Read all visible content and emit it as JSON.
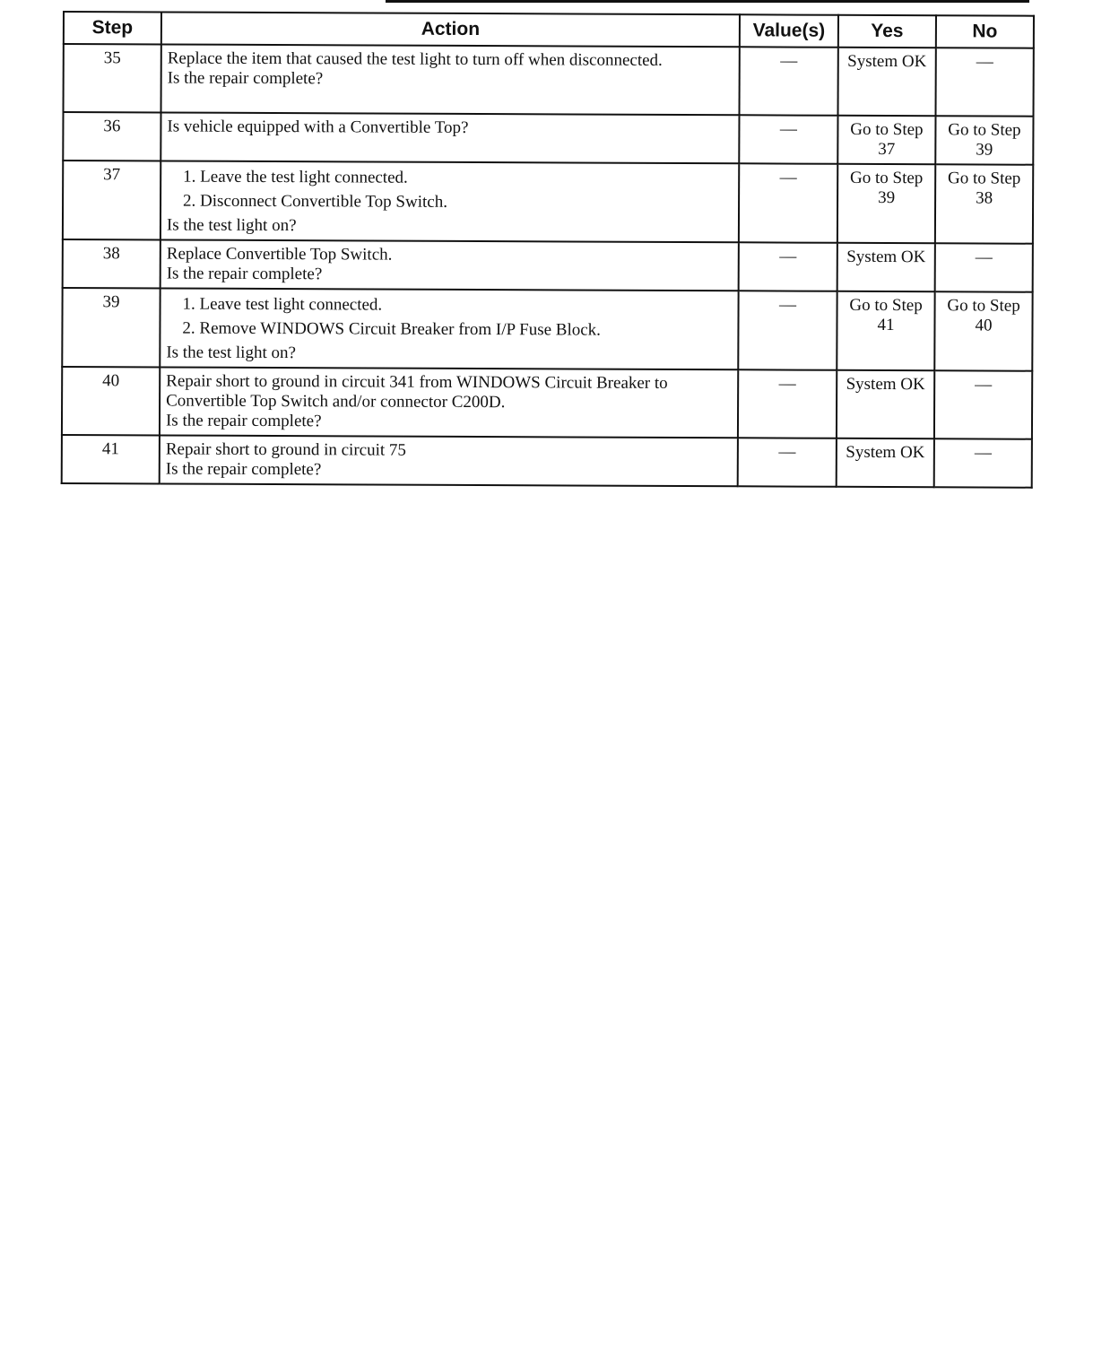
{
  "headers": {
    "step": "Step",
    "action": "Action",
    "values": "Value(s)",
    "yes": "Yes",
    "no": "No"
  },
  "rows": [
    {
      "step": "35",
      "lines": [
        "Replace the item that caused the test light to turn off when disconnected.",
        "Is the repair complete?"
      ],
      "value": "—",
      "yes": "System OK",
      "no": "—"
    },
    {
      "step": "36",
      "lines": [
        "Is vehicle equipped with a Convertible Top?"
      ],
      "value": "—",
      "yes": "Go to Step 37",
      "no": "Go to Step 39"
    },
    {
      "step": "37",
      "sub": [
        "1. Leave the test light connected.",
        "2. Disconnect Convertible Top Switch."
      ],
      "lines": [
        "Is the test light on?"
      ],
      "value": "—",
      "yes": "Go to Step 39",
      "no": "Go to Step 38"
    },
    {
      "step": "38",
      "lines": [
        "Replace Convertible Top Switch.",
        "Is the repair complete?"
      ],
      "value": "—",
      "yes": "System OK",
      "no": "—"
    },
    {
      "step": "39",
      "sub": [
        "1. Leave test light connected.",
        "2. Remove WINDOWS Circuit Breaker from I/P Fuse Block."
      ],
      "lines": [
        "Is the test light on?"
      ],
      "value": "—",
      "yes": "Go to Step 41",
      "no": "Go to Step 40"
    },
    {
      "step": "40",
      "lines": [
        "Repair short to ground in circuit 341 from WINDOWS Circuit Breaker to Convertible Top Switch and/or connector C200D.",
        "Is the repair complete?"
      ],
      "value": "—",
      "yes": "System OK",
      "no": "—"
    },
    {
      "step": "41",
      "lines": [
        "Repair short to ground in circuit 75",
        "Is the repair complete?"
      ],
      "value": "—",
      "yes": "System OK",
      "no": "—"
    }
  ]
}
